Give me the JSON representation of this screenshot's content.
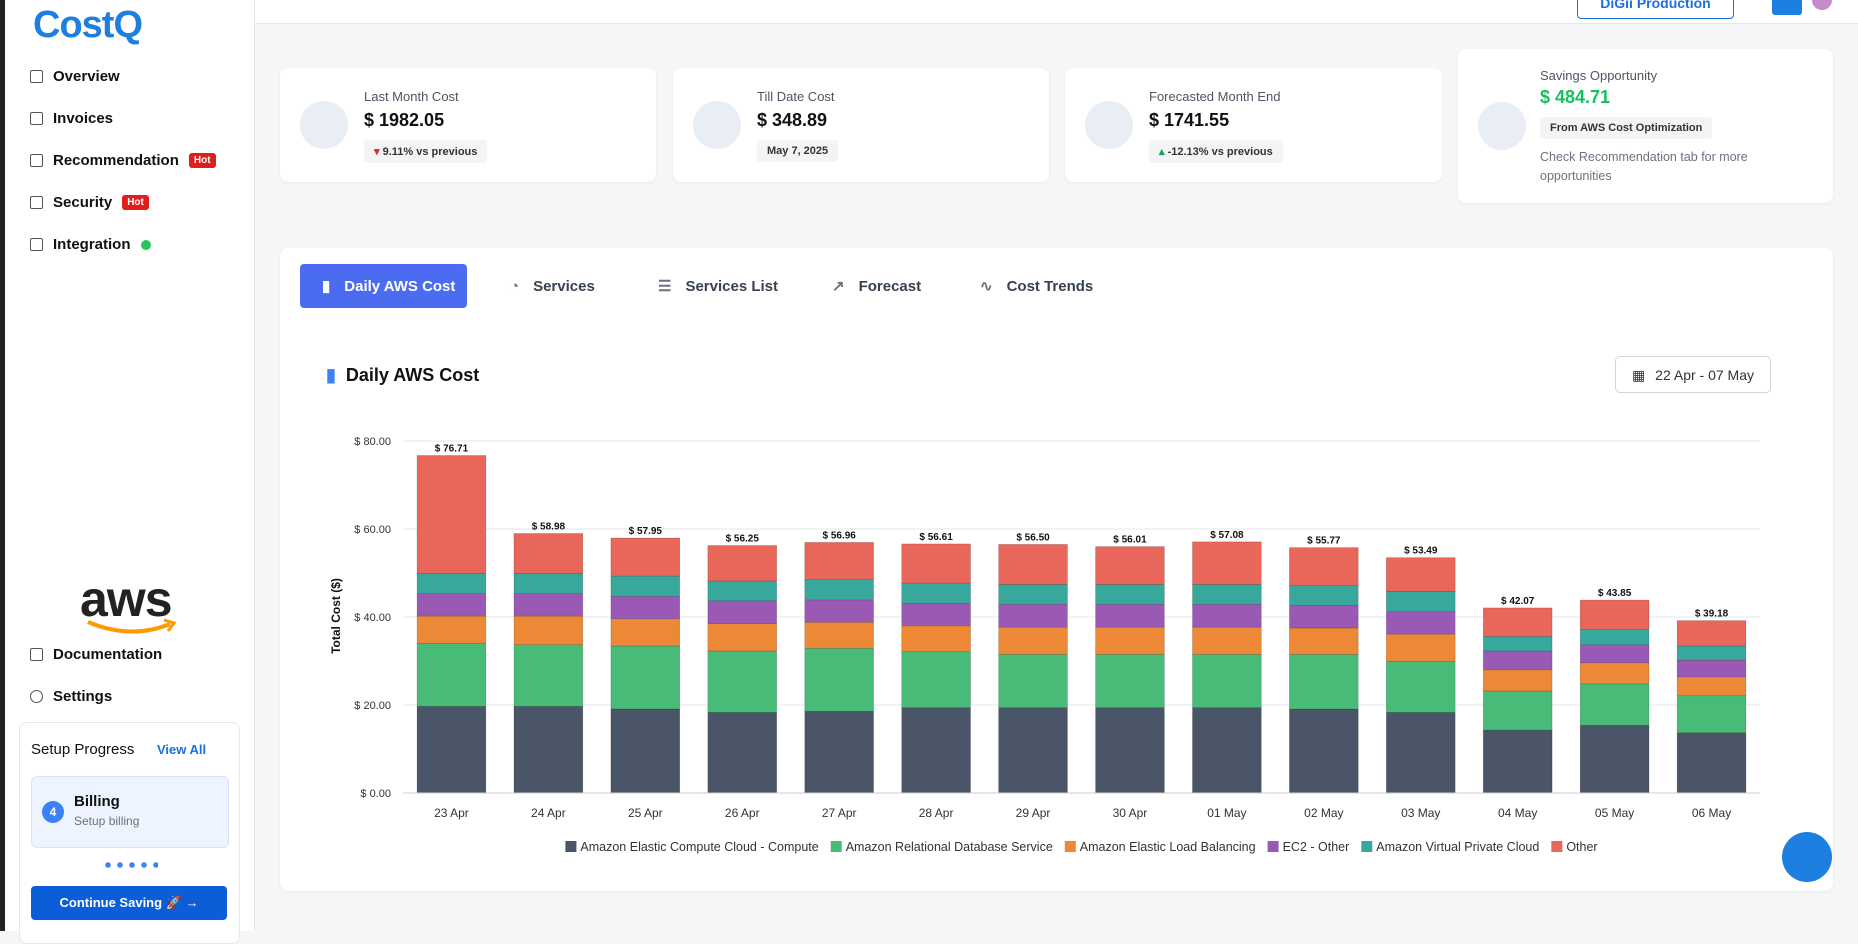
{
  "sidebar": {
    "logo": "CostQ",
    "nav": [
      {
        "label": "Overview"
      },
      {
        "label": "Invoices"
      },
      {
        "label": "Recommendation",
        "badge": "Hot"
      },
      {
        "label": "Security",
        "badge": "Hot"
      },
      {
        "label": "Integration"
      }
    ],
    "aws_logo": "aws",
    "bottom_nav": [
      "Documentation",
      "Settings"
    ],
    "setup": {
      "title": "Setup Progress",
      "link": "View All",
      "step_number": 4,
      "step_title": "Billing",
      "step_subtitle": "Setup billing",
      "button": "Continue Saving 🚀"
    }
  },
  "header": {
    "account": "DiGii Production"
  },
  "cards": [
    {
      "title": "Last Month Cost",
      "value": "$ 1982.05",
      "delta": "9.11% vs previous"
    },
    {
      "title": "Till Date Cost",
      "value": "$ 348.89",
      "delta": "May 7, 2025"
    },
    {
      "title": "Forecasted Month End",
      "value": "$ 1741.55",
      "delta": "-12.13% vs previous"
    }
  ],
  "savings": {
    "title": "Savings Opportunity",
    "value": "$ 484.71",
    "badge": "From AWS Cost Optimization",
    "note": "Check Recommendation tab for more opportunities"
  },
  "tabs": [
    "Daily AWS Cost",
    "Services",
    "Services List",
    "Forecast",
    "Cost Trends"
  ],
  "panel": {
    "title": "Daily AWS Cost",
    "date_range": "22 Apr - 07 May"
  },
  "chart_data": {
    "type": "stacked_bar",
    "y_label": "Total Cost ($)",
    "categories": [
      "23 Apr",
      "24 Apr",
      "25 Apr",
      "26 Apr",
      "27 Apr",
      "28 Apr",
      "29 Apr",
      "30 Apr",
      "01 May",
      "02 May",
      "03 May",
      "04 May",
      "05 May",
      "06 May"
    ],
    "series": [
      {
        "name": "Amazon Elastic Compute Cloud - Compute",
        "color": "#4a5568",
        "values": [
          19.7,
          19.7,
          19.1,
          18.3,
          18.6,
          19.4,
          19.4,
          19.4,
          19.4,
          19.1,
          18.3,
          14.3,
          15.4,
          13.7
        ]
      },
      {
        "name": "Amazon Relational Database Service",
        "color": "#48bb78",
        "values": [
          14.3,
          14.0,
          14.3,
          14.0,
          14.3,
          12.7,
          12.1,
          12.1,
          12.1,
          12.4,
          11.6,
          8.9,
          9.4,
          8.4
        ]
      },
      {
        "name": "Amazon Elastic Load Balancing",
        "color": "#ed8936",
        "values": [
          6.2,
          6.5,
          6.2,
          6.2,
          5.9,
          5.9,
          6.2,
          6.2,
          6.2,
          6.0,
          6.2,
          4.8,
          4.8,
          4.3
        ]
      },
      {
        "name": "EC2 - Other",
        "color": "#9b59b6",
        "values": [
          5.1,
          5.1,
          5.1,
          5.2,
          5.1,
          5.1,
          5.2,
          5.2,
          5.2,
          5.1,
          5.1,
          4.3,
          4.1,
          3.8
        ]
      },
      {
        "name": "Amazon Virtual Private Cloud",
        "color": "#38a89d",
        "values": [
          4.6,
          4.6,
          4.6,
          4.5,
          4.6,
          4.6,
          4.5,
          4.5,
          4.5,
          4.6,
          4.6,
          3.3,
          3.5,
          3.2
        ]
      },
      {
        "name": "Other",
        "color": "#e9665a",
        "values": [
          26.81,
          9.08,
          8.65,
          8.05,
          8.46,
          8.91,
          9.1,
          8.61,
          9.68,
          8.57,
          7.69,
          6.47,
          6.65,
          5.78
        ]
      }
    ],
    "totals": [
      76.71,
      58.98,
      57.95,
      56.25,
      56.96,
      56.61,
      56.5,
      56.01,
      57.08,
      55.77,
      53.49,
      42.07,
      43.85,
      39.18
    ],
    "total_labels": [
      "$ 76.71",
      "$ 58.98",
      "$ 57.95",
      "$ 56.25",
      "$ 56.96",
      "$ 56.61",
      "$ 56.50",
      "$ 56.01",
      "$ 57.08",
      "$ 55.77",
      "$ 53.49",
      "$ 42.07",
      "$ 43.85",
      "$ 39.18"
    ],
    "ylim": [
      0,
      80
    ],
    "yticks": [
      {
        "value": 0,
        "label": "$ 0.00"
      },
      {
        "value": 20,
        "label": "$ 20.00"
      },
      {
        "value": 40,
        "label": "$ 40.00"
      },
      {
        "value": 60,
        "label": "$ 60.00"
      },
      {
        "value": 80,
        "label": "$ 80.00"
      }
    ],
    "grid": true,
    "legend": "bottom"
  }
}
